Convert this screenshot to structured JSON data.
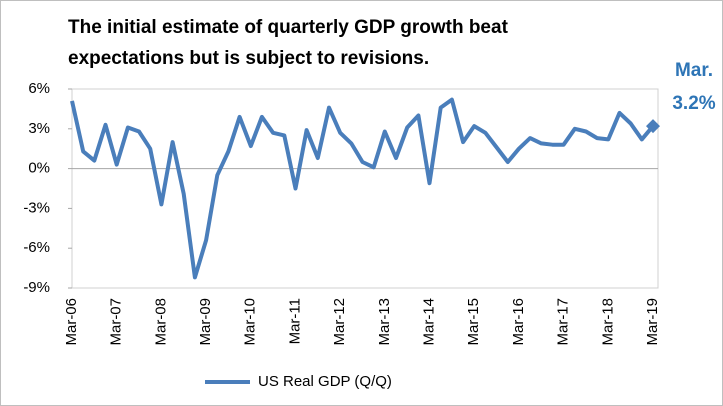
{
  "chart_data": {
    "type": "line",
    "title_lines": [
      "The initial estimate of quarterly GDP growth beat",
      "expectations but is subject to revisions."
    ],
    "annotations": [
      "Mar.",
      "3.2%"
    ],
    "categories": [
      "Mar-06",
      null,
      null,
      null,
      "Mar-07",
      null,
      null,
      null,
      "Mar-08",
      null,
      null,
      null,
      "Mar-09",
      null,
      null,
      null,
      "Mar-10",
      null,
      null,
      null,
      "Mar-11",
      null,
      null,
      null,
      "Mar-12",
      null,
      null,
      null,
      "Mar-13",
      null,
      null,
      null,
      "Mar-14",
      null,
      null,
      null,
      "Mar-15",
      null,
      null,
      null,
      "Mar-16",
      null,
      null,
      null,
      "Mar-17",
      null,
      null,
      null,
      "Mar-18",
      null,
      null,
      null,
      "Mar-19"
    ],
    "series": [
      {
        "name": "US Real GDP (Q/Q)",
        "color": "#4a7ebb",
        "values": [
          5.1,
          1.3,
          0.6,
          3.3,
          0.3,
          3.1,
          2.8,
          1.5,
          -2.7,
          2.0,
          -1.9,
          -8.2,
          -5.4,
          -0.5,
          1.3,
          3.9,
          1.7,
          3.9,
          2.7,
          2.5,
          -1.5,
          2.9,
          0.8,
          4.6,
          2.7,
          1.9,
          0.5,
          0.1,
          2.8,
          0.8,
          3.1,
          4.0,
          -1.1,
          4.6,
          5.2,
          2.0,
          3.2,
          2.7,
          1.6,
          0.5,
          1.5,
          2.3,
          1.9,
          1.8,
          1.8,
          3.0,
          2.8,
          2.3,
          2.2,
          4.2,
          3.4,
          2.2,
          3.2
        ]
      }
    ],
    "ylim": [
      -9,
      6
    ],
    "yticks": [
      {
        "value": -9,
        "label": "-9%"
      },
      {
        "value": -6,
        "label": "-6%"
      },
      {
        "value": -3,
        "label": "-3%"
      },
      {
        "value": 0,
        "label": "0%"
      },
      {
        "value": 3,
        "label": "3%"
      },
      {
        "value": 6,
        "label": "6%"
      }
    ],
    "grid": false,
    "legend": "bottom"
  }
}
